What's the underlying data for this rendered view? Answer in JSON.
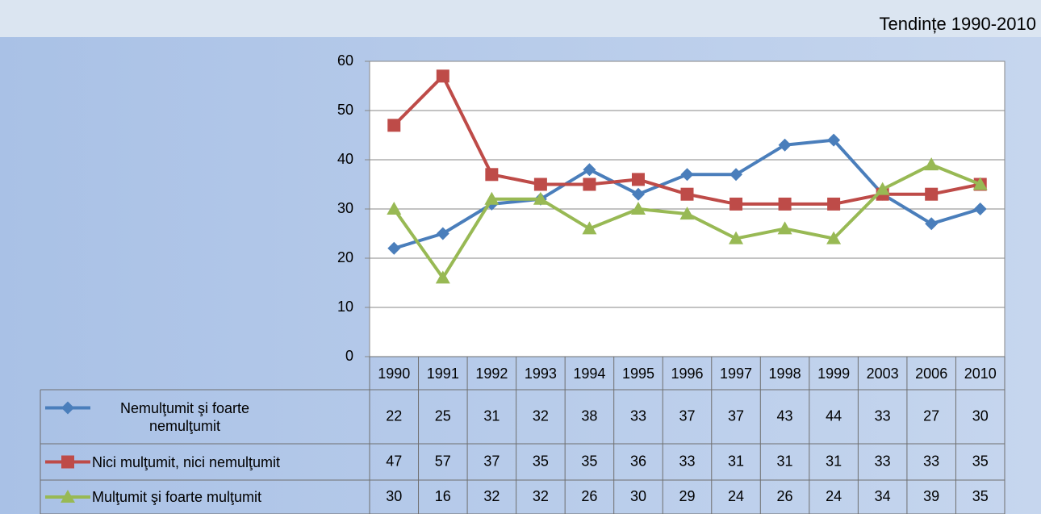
{
  "chart_data": {
    "type": "line",
    "title": "Tendințe 1990-2010",
    "categories": [
      "1990",
      "1991",
      "1992",
      "1993",
      "1994",
      "1995",
      "1996",
      "1997",
      "1998",
      "1999",
      "2003",
      "2006",
      "2010"
    ],
    "series": [
      {
        "name": "Nemulţumit şi foarte nemulţumit",
        "color": "#4a7ebb",
        "marker": "diamond",
        "values": [
          22,
          25,
          31,
          32,
          38,
          33,
          37,
          37,
          43,
          44,
          33,
          27,
          30
        ]
      },
      {
        "name": "Nici mulţumit, nici nemulţumit",
        "color": "#be4b48",
        "marker": "square",
        "values": [
          47,
          57,
          37,
          35,
          35,
          36,
          33,
          31,
          31,
          31,
          33,
          33,
          35
        ]
      },
      {
        "name": "Mulţumit şi foarte mulţumit",
        "color": "#98b954",
        "marker": "triangle",
        "values": [
          30,
          16,
          32,
          32,
          26,
          30,
          29,
          24,
          26,
          24,
          34,
          39,
          35
        ]
      }
    ],
    "ylim": [
      0,
      60
    ],
    "yticks": [
      0,
      10,
      20,
      30,
      40,
      50,
      60
    ],
    "grid": true
  }
}
